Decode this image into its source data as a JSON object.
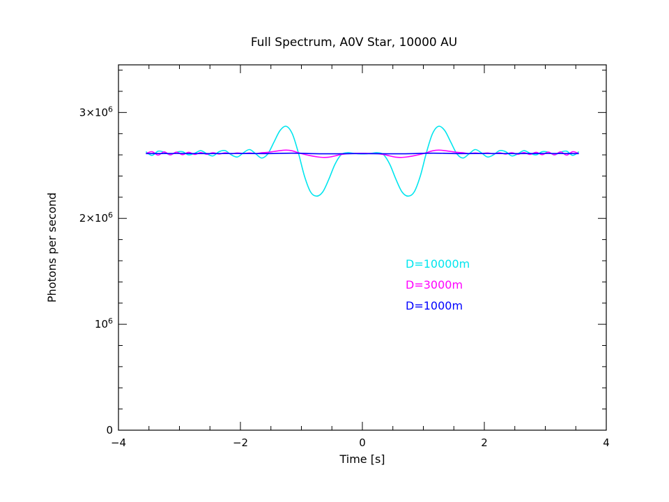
{
  "chart_data": {
    "type": "line",
    "title": "Full Spectrum, A0V Star, 10000 AU",
    "xlabel": "Time [s]",
    "ylabel": "Photons per second",
    "xlim": [
      -4,
      4
    ],
    "ylim": [
      0,
      3450000
    ],
    "grid": false,
    "legend_position": "center-right",
    "x_ticks": [
      {
        "value": -4,
        "label": "−4"
      },
      {
        "value": -2,
        "label": "−2"
      },
      {
        "value": 0,
        "label": "0"
      },
      {
        "value": 2,
        "label": "2"
      },
      {
        "value": 4,
        "label": "4"
      }
    ],
    "y_ticks": [
      {
        "value": 0,
        "base": "0",
        "exp": ""
      },
      {
        "value": 1000000,
        "base": "10",
        "exp": "6"
      },
      {
        "value": 2000000,
        "base": "2×10",
        "exp": "6"
      },
      {
        "value": 3000000,
        "base": "3×10",
        "exp": "6"
      }
    ],
    "series": [
      {
        "name": "D=10000m",
        "color": "#00e5ee",
        "x": [
          -3.55,
          -3.45,
          -3.35,
          -3.25,
          -3.15,
          -3.05,
          -2.95,
          -2.85,
          -2.75,
          -2.65,
          -2.55,
          -2.45,
          -2.35,
          -2.25,
          -2.15,
          -2.05,
          -1.95,
          -1.85,
          -1.75,
          -1.65,
          -1.55,
          -1.45,
          -1.35,
          -1.25,
          -1.15,
          -1.05,
          -0.95,
          -0.85,
          -0.75,
          -0.65,
          -0.55,
          -0.45,
          -0.35,
          -0.25,
          -0.15,
          -0.05,
          0.05,
          0.15,
          0.25,
          0.35,
          0.45,
          0.55,
          0.65,
          0.75,
          0.85,
          0.95,
          1.05,
          1.15,
          1.25,
          1.35,
          1.45,
          1.55,
          1.65,
          1.75,
          1.85,
          1.95,
          2.05,
          2.15,
          2.25,
          2.35,
          2.45,
          2.55,
          2.65,
          2.75,
          2.85,
          2.95,
          3.05,
          3.15,
          3.25,
          3.35,
          3.45,
          3.55
        ],
        "y": [
          2630000,
          2595000,
          2635000,
          2625000,
          2600000,
          2625000,
          2630000,
          2600000,
          2615000,
          2640000,
          2610000,
          2590000,
          2630000,
          2640000,
          2600000,
          2580000,
          2620000,
          2650000,
          2610000,
          2570000,
          2610000,
          2720000,
          2830000,
          2870000,
          2800000,
          2620000,
          2400000,
          2250000,
          2210000,
          2250000,
          2370000,
          2510000,
          2600000,
          2620000,
          2615000,
          2610000,
          2610000,
          2615000,
          2620000,
          2600000,
          2510000,
          2370000,
          2250000,
          2210000,
          2250000,
          2400000,
          2620000,
          2800000,
          2870000,
          2830000,
          2720000,
          2610000,
          2570000,
          2610000,
          2650000,
          2620000,
          2580000,
          2600000,
          2640000,
          2630000,
          2590000,
          2610000,
          2640000,
          2615000,
          2600000,
          2630000,
          2625000,
          2600000,
          2625000,
          2635000,
          2595000,
          2630000
        ]
      },
      {
        "name": "D=3000m",
        "color": "#ff00ff",
        "x": [
          -3.55,
          -3.45,
          -3.35,
          -3.25,
          -3.15,
          -3.05,
          -2.95,
          -2.85,
          -2.75,
          -2.65,
          -2.55,
          -2.45,
          -2.35,
          -2.25,
          -2.15,
          -2.05,
          -1.95,
          -1.85,
          -1.75,
          -1.65,
          -1.55,
          -1.45,
          -1.35,
          -1.25,
          -1.15,
          -1.05,
          -0.95,
          -0.85,
          -0.75,
          -0.65,
          -0.55,
          -0.45,
          -0.35,
          -0.25,
          -0.15,
          -0.05,
          0.05,
          0.15,
          0.25,
          0.35,
          0.45,
          0.55,
          0.65,
          0.75,
          0.85,
          0.95,
          1.05,
          1.15,
          1.25,
          1.35,
          1.45,
          1.55,
          1.65,
          1.75,
          1.85,
          1.95,
          2.05,
          2.15,
          2.25,
          2.35,
          2.45,
          2.55,
          2.65,
          2.75,
          2.85,
          2.95,
          3.05,
          3.15,
          3.25,
          3.35,
          3.45,
          3.55
        ],
        "y": [
          2612000,
          2630000,
          2598000,
          2628000,
          2600000,
          2626000,
          2602000,
          2624000,
          2604000,
          2622000,
          2606000,
          2620000,
          2608000,
          2619000,
          2610000,
          2618000,
          2612000,
          2618000,
          2612000,
          2620000,
          2624000,
          2632000,
          2640000,
          2645000,
          2638000,
          2620000,
          2605000,
          2592000,
          2582000,
          2576000,
          2578000,
          2590000,
          2603000,
          2611000,
          2613000,
          2614000,
          2614000,
          2613000,
          2611000,
          2603000,
          2590000,
          2578000,
          2576000,
          2582000,
          2592000,
          2605000,
          2620000,
          2638000,
          2645000,
          2640000,
          2632000,
          2624000,
          2620000,
          2612000,
          2618000,
          2612000,
          2618000,
          2610000,
          2619000,
          2608000,
          2620000,
          2606000,
          2622000,
          2604000,
          2624000,
          2602000,
          2626000,
          2600000,
          2628000,
          2598000,
          2630000,
          2612000
        ]
      },
      {
        "name": "D=1000m",
        "color": "#0000ff",
        "x": [
          -3.55,
          -3.05,
          -2.55,
          -2.05,
          -1.55,
          -1.15,
          -0.65,
          0.0,
          0.65,
          1.15,
          1.55,
          2.05,
          2.55,
          3.05,
          3.55
        ],
        "y": [
          2612000,
          2613000,
          2612000,
          2613000,
          2612000,
          2616000,
          2610000,
          2612000,
          2610000,
          2616000,
          2612000,
          2613000,
          2612000,
          2613000,
          2612000
        ]
      }
    ]
  }
}
